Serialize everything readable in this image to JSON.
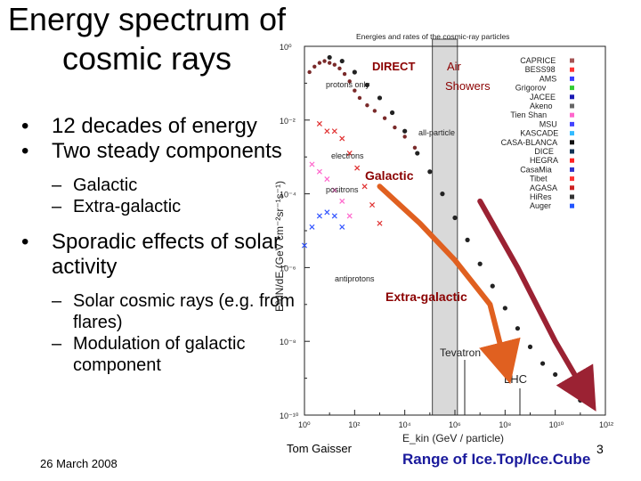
{
  "slide": {
    "title": "Energy spectrum of cosmic rays",
    "bullets": [
      {
        "text": "12 decades of energy",
        "top": 0,
        "level": 1
      },
      {
        "text": "Two steady components",
        "level": 1
      },
      {
        "text": "Galactic",
        "level": 2
      },
      {
        "text": "Extra-galactic",
        "level": 2
      },
      {
        "text": "Sporadic effects of solar activity",
        "level": 1
      },
      {
        "text": "Solar cosmic rays (e.g. from flares)",
        "level": 2
      },
      {
        "text": "Modulation of galactic component",
        "level": 2
      }
    ],
    "footer_date": "26 March 2008",
    "footer_author": "Tom Gaisser",
    "page_number": "3",
    "caption": "Range of Ice.Top/Ice.Cube"
  },
  "chart_data": {
    "type": "scatter",
    "title": "Energies and rates of the cosmic-ray particles",
    "xlabel": "E_kin (GeV / particle)",
    "ylabel": "E²dN/dE (GeV cm⁻²sr⁻¹s⁻¹)",
    "x_scale": "log",
    "y_scale": "log",
    "xlim": [
      1,
      1000000000000
    ],
    "ylim": [
      1e-10,
      1
    ],
    "x_tick_labels": [
      "10⁰",
      "10²",
      "10⁴",
      "10⁶",
      "10⁸",
      "10¹⁰",
      "10¹²"
    ],
    "y_tick_labels": [
      "10⁰",
      "10⁻²",
      "10⁻⁴",
      "10⁻⁶",
      "10⁻⁸",
      "10⁻¹⁰"
    ],
    "legend": [
      "CAPRICE",
      "BESS98",
      "AMS",
      "Grigorov",
      "JACEE",
      "Akeno",
      "Tien Shan",
      "MSU",
      "KASCADE",
      "CASA-BLANCA",
      "DICE",
      "HEGRA",
      "CasaMia",
      "Tibet",
      "AGASA",
      "HiRes",
      "Auger"
    ],
    "legend_colors": [
      "#a55555",
      "#ff3333",
      "#3c3cff",
      "#33cc33",
      "#1a1ab4",
      "#666666",
      "#ff66cc",
      "#4444ff",
      "#33bbff",
      "#111111",
      "#113355",
      "#ff2222",
      "#3333cc",
      "#ff3333",
      "#cc2222",
      "#333333",
      "#2255ff"
    ],
    "annotations": {
      "direct": "DIRECT",
      "air_showers": "Air Showers",
      "protons_only": "protons only",
      "all_particle": "all-particle",
      "electrons": "electrons",
      "positrons": "positrons",
      "antiprotons": "antiprotons",
      "galactic": "Galactic",
      "extragalactic": "Extra-galactic",
      "tevatron": "Tevatron",
      "lhc": "LHC"
    },
    "series": [
      {
        "name": "all-particle",
        "color": "#222222",
        "x": [
          1,
          1.5,
          2,
          2.5,
          3,
          3.5,
          4,
          4.5,
          5,
          5.5,
          6,
          6.5,
          7,
          7.5,
          8,
          8.5,
          9,
          9.5,
          10,
          10.5,
          11
        ],
        "y": [
          -0.3,
          -0.4,
          -0.7,
          -1.05,
          -1.4,
          -1.8,
          -2.3,
          -2.9,
          -3.4,
          -4.0,
          -4.65,
          -5.25,
          -5.9,
          -6.5,
          -7.1,
          -7.65,
          -8.15,
          -8.6,
          -8.9,
          -9.2,
          -9.6
        ]
      },
      {
        "name": "electrons",
        "color": "#e03030",
        "x": [
          0.6,
          0.9,
          1.2,
          1.5,
          1.8,
          2.1,
          2.4,
          2.7,
          3.0
        ],
        "y": [
          -2.1,
          -2.3,
          -2.3,
          -2.5,
          -2.9,
          -3.3,
          -3.8,
          -4.3,
          -4.8
        ]
      },
      {
        "name": "positrons",
        "color": "#ff66cc",
        "x": [
          0.3,
          0.6,
          0.9,
          1.2,
          1.5,
          1.8
        ],
        "y": [
          -3.2,
          -3.4,
          -3.6,
          -3.9,
          -4.2,
          -4.6
        ]
      },
      {
        "name": "antiprotons",
        "color": "#3355ff",
        "x": [
          0,
          0.3,
          0.6,
          0.9,
          1.2,
          1.5
        ],
        "y": [
          -5.4,
          -4.9,
          -4.6,
          -4.5,
          -4.6,
          -4.9
        ]
      }
    ],
    "band": {
      "x_from": 5.1,
      "x_to": 6.1
    },
    "arrows": [
      {
        "name": "galactic-arrow",
        "color": "#e06020",
        "x": [
          3.0,
          4.6,
          6.0,
          7.4,
          8.0
        ],
        "y": [
          -3.8,
          -4.8,
          -5.8,
          -7.0,
          -8.6
        ]
      },
      {
        "name": "extragalactic-arrow",
        "color": "#9b2233",
        "x": [
          7.0,
          8.5,
          10.0,
          11.2
        ],
        "y": [
          -4.2,
          -6.0,
          -8.0,
          -9.4
        ]
      }
    ]
  }
}
